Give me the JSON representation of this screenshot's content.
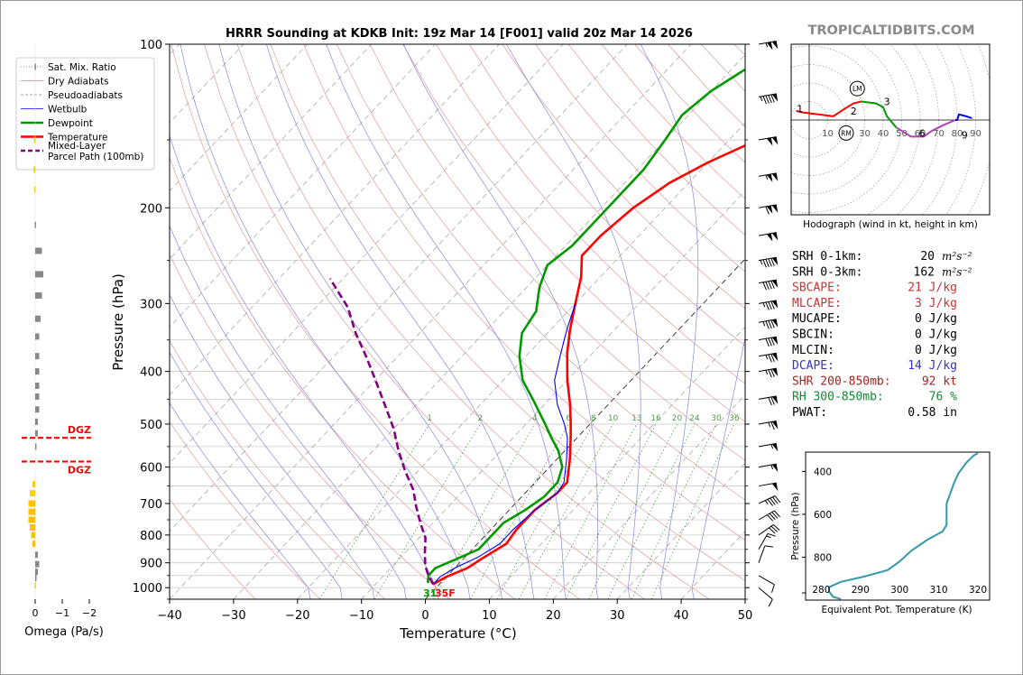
{
  "header": {
    "title": "HRRR Sounding at KDKB Init: 19z Mar 14 [F001] valid 20z Mar 14 2026",
    "brand": "TROPICALTIDBITS.COM"
  },
  "chart_data": [
    {
      "type": "line",
      "name": "skewt",
      "xlabel": "Temperature (°C)",
      "ylabel": "Pressure (hPa)",
      "xlim": [
        -40,
        50
      ],
      "ylim": [
        1050,
        100
      ],
      "x_ticks": [
        "−40",
        "−30",
        "−20",
        "−10",
        "0",
        "10",
        "20",
        "30",
        "40",
        "50"
      ],
      "y_ticks": [
        "100",
        "200",
        "300",
        "400",
        "500",
        "600",
        "700",
        "800",
        "900",
        "1000"
      ],
      "log_y": true,
      "grid": true,
      "legend": {
        "placement": "top-left",
        "entries": [
          {
            "label": "Sat. Mix. Ratio",
            "color": "#777777",
            "style": "dotted"
          },
          {
            "label": "Dry Adiabats",
            "color": "#e08080",
            "style": "solid"
          },
          {
            "label": "Pseudoadiabats",
            "color": "#888888",
            "style": "dashed"
          },
          {
            "label": "Wetbulb",
            "color": "#0000ff",
            "style": "solid"
          },
          {
            "label": "Dewpoint",
            "color": "#009900",
            "style": "solid"
          },
          {
            "label": "Temperature",
            "color": "#ff0000",
            "style": "solid"
          },
          {
            "label": "Mixed-Layer\nParcel Path (100mb)",
            "color": "#800080",
            "style": "dashed"
          }
        ]
      },
      "mixing_ratio_labels": [
        "1",
        "2",
        "4",
        "6",
        "8",
        "10",
        "13",
        "16",
        "20",
        "24",
        "30",
        "36"
      ],
      "series": [
        {
          "name": "Temperature",
          "color": "#ff0000",
          "points": [
            [
              -1,
              985
            ],
            [
              0,
              955
            ],
            [
              2,
              920
            ],
            [
              3,
              880
            ],
            [
              4.5,
              830
            ],
            [
              4,
              780
            ],
            [
              4,
              720
            ],
            [
              5,
              670
            ],
            [
              5,
              640
            ],
            [
              2,
              580
            ],
            [
              -1,
              530
            ],
            [
              -3,
              500
            ],
            [
              -6,
              460
            ],
            [
              -10,
              415
            ],
            [
              -14,
              370
            ],
            [
              -17,
              335
            ],
            [
              -20,
              300
            ],
            [
              -23,
              268
            ],
            [
              -26,
              245
            ],
            [
              -26,
              225
            ],
            [
              -25,
              200
            ],
            [
              -23,
              180
            ],
            [
              -20,
              165
            ],
            [
              -14,
              145
            ],
            [
              -10,
              130
            ],
            [
              -6,
              115
            ],
            [
              -3,
              100
            ]
          ]
        },
        {
          "name": "Wetbulb",
          "color": "#0000ff",
          "points": [
            [
              -1,
              985
            ],
            [
              -1,
              955
            ],
            [
              0,
              920
            ],
            [
              2,
              880
            ],
            [
              3.5,
              830
            ],
            [
              3.5,
              780
            ],
            [
              4,
              720
            ],
            [
              5,
              670
            ],
            [
              4.5,
              640
            ],
            [
              1.5,
              580
            ],
            [
              -1.5,
              530
            ],
            [
              -4,
              500
            ],
            [
              -8,
              460
            ],
            [
              -12,
              415
            ],
            [
              -15,
              370
            ],
            [
              -17.5,
              335
            ],
            [
              -20,
              300
            ]
          ]
        },
        {
          "name": "Dewpoint",
          "color": "#009900",
          "points": [
            [
              -2,
              980
            ],
            [
              -3,
              950
            ],
            [
              -3,
              920
            ],
            [
              -1,
              885
            ],
            [
              1,
              850
            ],
            [
              1,
              800
            ],
            [
              1,
              760
            ],
            [
              2.5,
              720
            ],
            [
              3.5,
              680
            ],
            [
              3.5,
              640
            ],
            [
              2,
              600
            ],
            [
              -1,
              560
            ],
            [
              -4,
              530
            ],
            [
              -7,
              500
            ],
            [
              -12,
              455
            ],
            [
              -17,
              415
            ],
            [
              -21,
              375
            ],
            [
              -24,
              340
            ],
            [
              -25,
              310
            ],
            [
              -28,
              280
            ],
            [
              -30,
              255
            ],
            [
              -29,
              235
            ],
            [
              -29,
              210
            ],
            [
              -29,
              190
            ],
            [
              -29,
              170
            ],
            [
              -30,
              150
            ],
            [
              -31,
              135
            ],
            [
              -30,
              122
            ],
            [
              -28,
              112
            ],
            [
              -25,
              100
            ]
          ]
        },
        {
          "name": "Mixed-Layer Parcel Path (100mb)",
          "color": "#800080",
          "style": "dashed",
          "points": [
            [
              -1,
              985
            ],
            [
              -3,
              950
            ],
            [
              -5,
              910
            ],
            [
              -7,
              860
            ],
            [
              -9,
              810
            ],
            [
              -12,
              760
            ],
            [
              -15,
              710
            ],
            [
              -18,
              660
            ],
            [
              -22,
              610
            ],
            [
              -26,
              560
            ],
            [
              -30,
              510
            ],
            [
              -35,
              460
            ],
            [
              -40,
              415
            ],
            [
              -45,
              375
            ],
            [
              -50,
              340
            ],
            [
              -55,
              305
            ],
            [
              -62,
              270
            ]
          ]
        }
      ]
    },
    {
      "type": "line",
      "name": "hodograph",
      "title": "Hodograph (wind in kt, height in km)",
      "ring_labels": [
        "10",
        "20",
        "30",
        "40",
        "50",
        "60",
        "70",
        "80",
        "90"
      ],
      "height_labels": [
        "1",
        "2",
        "3",
        "6",
        "9"
      ],
      "markers": [
        "LM",
        "RM"
      ],
      "series": [
        {
          "name": "0-3km",
          "color": "#ff0000",
          "points": [
            [
              -7,
              5
            ],
            [
              -3,
              4
            ],
            [
              5,
              3
            ],
            [
              13,
              2
            ],
            [
              19,
              6
            ],
            [
              24,
              9
            ],
            [
              28,
              10
            ]
          ]
        },
        {
          "name": "3-6km",
          "color": "#009900",
          "points": [
            [
              28,
              10
            ],
            [
              36,
              9
            ],
            [
              40,
              7
            ],
            [
              42,
              2
            ],
            [
              47,
              -4
            ]
          ]
        },
        {
          "name": "6-9km",
          "color": "#b040b0",
          "points": [
            [
              47,
              -4
            ],
            [
              55,
              -9
            ],
            [
              62,
              -9
            ],
            [
              66,
              -6
            ],
            [
              72,
              -3
            ],
            [
              79,
              0
            ]
          ]
        },
        {
          "name": "9+km",
          "color": "#0000ff",
          "points": [
            [
              79,
              0
            ],
            [
              80,
              0
            ],
            [
              81,
              3
            ],
            [
              85,
              2
            ],
            [
              88,
              1
            ]
          ]
        }
      ]
    },
    {
      "type": "line",
      "name": "theta-e",
      "xlabel": "Equivalent Pot. Temperature (K)",
      "ylabel": "Pressure (hPa)",
      "x_ticks": [
        "280",
        "290",
        "300",
        "310",
        "320"
      ],
      "y_ticks": [
        "400",
        "600",
        "800"
      ],
      "xlim": [
        276,
        323
      ],
      "ylim": [
        1000,
        310
      ],
      "series": [
        {
          "name": "theta-e",
          "color": "#3399aa",
          "points": [
            [
              285,
              995
            ],
            [
              283,
              985
            ],
            [
              282,
              960
            ],
            [
              282,
              940
            ],
            [
              285,
              915
            ],
            [
              291,
              890
            ],
            [
              297,
              860
            ],
            [
              300,
              820
            ],
            [
              303,
              770
            ],
            [
              307,
              720
            ],
            [
              311,
              680
            ],
            [
              312,
              650
            ],
            [
              312,
              600
            ],
            [
              312,
              550
            ],
            [
              313,
              500
            ],
            [
              314,
              450
            ],
            [
              315,
              410
            ],
            [
              317,
              360
            ],
            [
              319,
              325
            ],
            [
              320,
              315
            ]
          ]
        }
      ]
    },
    {
      "type": "bar",
      "name": "omega",
      "xlabel": "Omega (Pa/s)",
      "x_ticks": [
        "0",
        "−1",
        "−2"
      ],
      "dgz_label": "DGZ",
      "dgz_hpa": [
        530,
        586
      ],
      "bars": [
        {
          "p": 110,
          "v": 0.02,
          "c": "#888888"
        },
        {
          "p": 150,
          "v": 0.05,
          "c": "#ffd000"
        },
        {
          "p": 170,
          "v": 0.06,
          "c": "#ffd000"
        },
        {
          "p": 185,
          "v": 0.04,
          "c": "#ffd000"
        },
        {
          "p": 215,
          "v": 0.02,
          "c": "#888888"
        },
        {
          "p": 240,
          "v": -0.25,
          "c": "#888888"
        },
        {
          "p": 265,
          "v": -0.3,
          "c": "#888888"
        },
        {
          "p": 290,
          "v": -0.25,
          "c": "#888888"
        },
        {
          "p": 320,
          "v": -0.2,
          "c": "#888888"
        },
        {
          "p": 345,
          "v": -0.15,
          "c": "#888888"
        },
        {
          "p": 375,
          "v": -0.15,
          "c": "#888888"
        },
        {
          "p": 400,
          "v": -0.15,
          "c": "#888888"
        },
        {
          "p": 425,
          "v": -0.15,
          "c": "#888888"
        },
        {
          "p": 445,
          "v": -0.15,
          "c": "#888888"
        },
        {
          "p": 470,
          "v": -0.15,
          "c": "#888888"
        },
        {
          "p": 495,
          "v": -0.1,
          "c": "#888888"
        },
        {
          "p": 520,
          "v": -0.1,
          "c": "#888888"
        },
        {
          "p": 550,
          "v": -0.05,
          "c": "#888888"
        },
        {
          "p": 645,
          "v": 0.1,
          "c": "#ffd000"
        },
        {
          "p": 670,
          "v": 0.2,
          "c": "#ffd000"
        },
        {
          "p": 700,
          "v": 0.25,
          "c": "#ffc000"
        },
        {
          "p": 725,
          "v": 0.25,
          "c": "#ffc000"
        },
        {
          "p": 750,
          "v": 0.25,
          "c": "#ffc000"
        },
        {
          "p": 775,
          "v": 0.2,
          "c": "#ffc000"
        },
        {
          "p": 800,
          "v": 0.15,
          "c": "#ffc000"
        },
        {
          "p": 830,
          "v": 0.1,
          "c": "#ffc000"
        },
        {
          "p": 870,
          "v": -0.1,
          "c": "#888888"
        },
        {
          "p": 905,
          "v": -0.15,
          "c": "#888888"
        },
        {
          "p": 935,
          "v": -0.1,
          "c": "#888888"
        },
        {
          "p": 960,
          "v": -0.05,
          "c": "#888888"
        },
        {
          "p": 990,
          "v": 0.02,
          "c": "#ffd000"
        }
      ]
    }
  ],
  "surface": {
    "dewpoint_label": "31",
    "temperature_label": "35F"
  },
  "indices": [
    {
      "label": "SRH 0-1km:",
      "value": "20",
      "unit_html": "m²s⁻²",
      "color": "#000000"
    },
    {
      "label": "SRH 0-3km:",
      "value": "162",
      "unit_html": "m²s⁻²",
      "color": "#000000"
    },
    {
      "label": "SBCAPE:",
      "value": "21 J/kg",
      "color": "#cc3333"
    },
    {
      "label": "MLCAPE:",
      "value": "3 J/kg",
      "color": "#cc3333"
    },
    {
      "label": "MUCAPE:",
      "value": "0 J/kg",
      "color": "#000000"
    },
    {
      "label": "SBCIN:",
      "value": "0 J/kg",
      "color": "#000000"
    },
    {
      "label": "MLCIN:",
      "value": "0 J/kg",
      "color": "#000000"
    },
    {
      "label": "DCAPE:",
      "value": "14 J/kg",
      "color": "#3333cc"
    },
    {
      "label": "SHR 200-850mb:",
      "value": "92 kt",
      "color": "#aa2222"
    },
    {
      "label": "RH 300-850mb:",
      "value": "76 %",
      "color": "#118833"
    },
    {
      "label": "PWAT:",
      "value": "0.58 in",
      "color": "#000000"
    }
  ],
  "wind_barbs": [
    {
      "p": 100,
      "kt": 105,
      "dir": 260
    },
    {
      "p": 125,
      "kt": 95,
      "dir": 260
    },
    {
      "p": 150,
      "kt": 100,
      "dir": 260
    },
    {
      "p": 175,
      "kt": 105,
      "dir": 260
    },
    {
      "p": 200,
      "kt": 110,
      "dir": 260
    },
    {
      "p": 225,
      "kt": 100,
      "dir": 260
    },
    {
      "p": 250,
      "kt": 95,
      "dir": 260
    },
    {
      "p": 275,
      "kt": 90,
      "dir": 260
    },
    {
      "p": 300,
      "kt": 85,
      "dir": 260
    },
    {
      "p": 325,
      "kt": 85,
      "dir": 260
    },
    {
      "p": 350,
      "kt": 80,
      "dir": 260
    },
    {
      "p": 375,
      "kt": 75,
      "dir": 260
    },
    {
      "p": 400,
      "kt": 75,
      "dir": 260
    },
    {
      "p": 450,
      "kt": 70,
      "dir": 260
    },
    {
      "p": 500,
      "kt": 65,
      "dir": 260
    },
    {
      "p": 550,
      "kt": 55,
      "dir": 260
    },
    {
      "p": 600,
      "kt": 55,
      "dir": 260
    },
    {
      "p": 650,
      "kt": 50,
      "dir": 260
    },
    {
      "p": 700,
      "kt": 45,
      "dir": 245
    },
    {
      "p": 750,
      "kt": 40,
      "dir": 240
    },
    {
      "p": 800,
      "kt": 30,
      "dir": 235
    },
    {
      "p": 850,
      "kt": 15,
      "dir": 210
    },
    {
      "p": 900,
      "kt": 10,
      "dir": 200
    },
    {
      "p": 950,
      "kt": 10,
      "dir": 300
    },
    {
      "p": 1000,
      "kt": 10,
      "dir": 310
    }
  ]
}
